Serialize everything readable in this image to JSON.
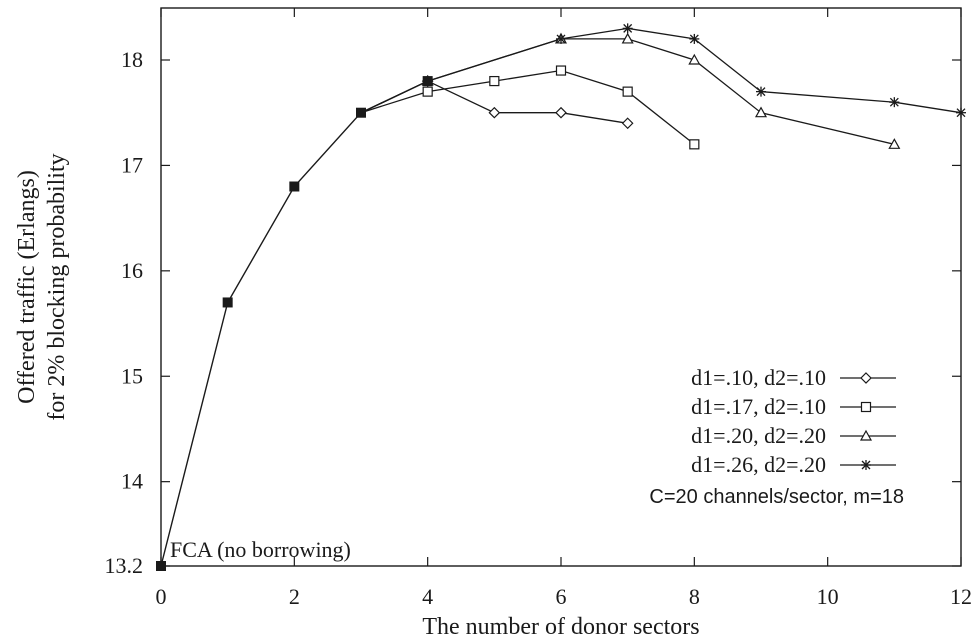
{
  "chart_data": {
    "type": "line",
    "title": "",
    "xlabel": "The number of donor sectors",
    "ylabel": [
      "Offered traffic (Erlangs)",
      "for 2% blocking probability"
    ],
    "xlim": [
      0,
      12
    ],
    "ylim": [
      13.2,
      18.5
    ],
    "xticks": [
      0,
      2,
      4,
      6,
      8,
      10,
      12
    ],
    "yticks": [
      13.2,
      14,
      15,
      16,
      17,
      18
    ],
    "ytick_labels": [
      "13.2",
      "14",
      "15",
      "16",
      "17",
      "18"
    ],
    "grid": false,
    "legend_position": "bottom-right",
    "common": {
      "x": [
        0,
        1,
        2,
        3
      ],
      "y": [
        13.2,
        15.7,
        16.8,
        17.5
      ]
    },
    "series": [
      {
        "name": "d1=.10, d2=.10",
        "marker": "diamond",
        "x": [
          3,
          4,
          5,
          6,
          7
        ],
        "y": [
          17.5,
          17.8,
          17.5,
          17.5,
          17.4
        ]
      },
      {
        "name": "d1=.17, d2=.10",
        "marker": "square",
        "x": [
          3,
          4,
          5,
          6,
          7,
          8
        ],
        "y": [
          17.5,
          17.7,
          17.8,
          17.9,
          17.7,
          17.2
        ]
      },
      {
        "name": "d1=.20, d2=.20",
        "marker": "triangle",
        "x": [
          3,
          4,
          6,
          7,
          8,
          9,
          11
        ],
        "y": [
          17.5,
          17.8,
          18.2,
          18.2,
          18.0,
          17.5,
          17.2
        ]
      },
      {
        "name": "d1=.26, d2=.20",
        "marker": "star",
        "x": [
          3,
          4,
          6,
          7,
          8,
          9,
          11,
          12
        ],
        "y": [
          17.5,
          17.8,
          18.2,
          18.3,
          18.2,
          17.7,
          17.6,
          17.5
        ]
      }
    ],
    "annotations": {
      "fca": "FCA (no borrowing)",
      "note": "C=20 channels/sector, m=18"
    },
    "line_color": "#1a1a1a"
  }
}
